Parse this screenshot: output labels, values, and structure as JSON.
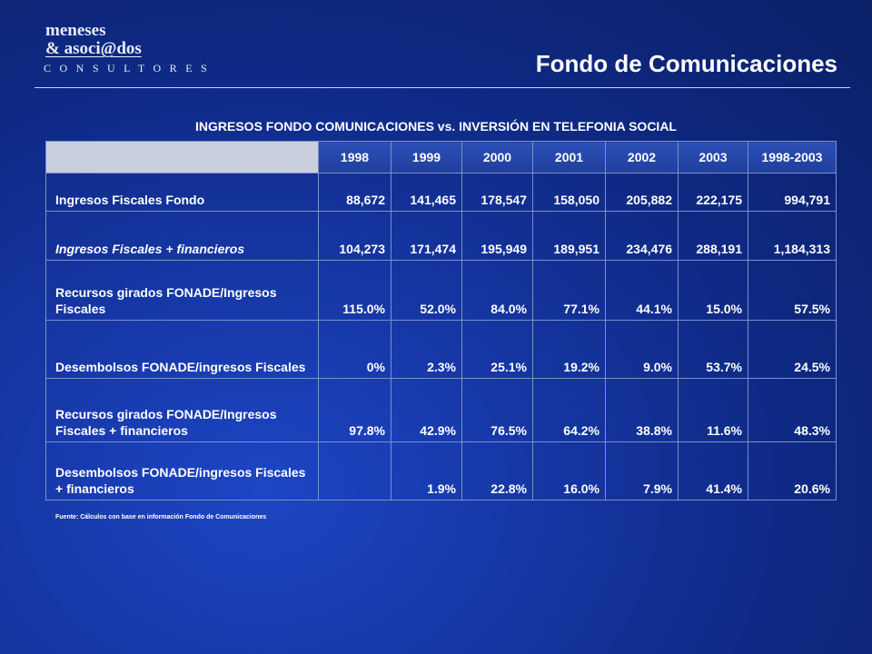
{
  "logo": {
    "line1": "meneses",
    "line2": "& asoci@dos",
    "line3": "CONSULTORES"
  },
  "header": {
    "title": "Fondo de Comunicaciones"
  },
  "subtitle": "INGRESOS FONDO COMUNICACIONES vs.  INVERSIÓN EN TELEFONIA SOCIAL",
  "table": {
    "columns": [
      "1998",
      "1999",
      "2000",
      "2001",
      "2002",
      "2003",
      "1998-2003"
    ],
    "rows": [
      {
        "label": "Ingresos Fiscales Fondo",
        "values": [
          "88,672",
          "141,465",
          "178,547",
          "158,050",
          "205,882",
          "222,175",
          "994,791"
        ]
      },
      {
        "label": "Ingresos Fiscales +  financieros",
        "values": [
          "104,273",
          "171,474",
          "195,949",
          "189,951",
          "234,476",
          "288,191",
          "1,184,313"
        ]
      },
      {
        "label": "Recursos girados FONADE/Ingresos Fiscales",
        "values": [
          "115.0%",
          "52.0%",
          "84.0%",
          "77.1%",
          "44.1%",
          "15.0%",
          "57.5%"
        ]
      },
      {
        "label": "Desembolsos FONADE/ingresos Fiscales",
        "values": [
          "0%",
          "2.3%",
          "25.1%",
          "19.2%",
          "9.0%",
          "53.7%",
          "24.5%"
        ]
      },
      {
        "label": "Recursos girados FONADE/Ingresos Fiscales + financieros",
        "values": [
          "97.8%",
          "42.9%",
          "76.5%",
          "64.2%",
          "38.8%",
          "11.6%",
          "48.3%"
        ]
      },
      {
        "label": "Desembolsos FONADE/ingresos Fiscales + financieros",
        "values": [
          "",
          "1.9%",
          "22.8%",
          "16.0%",
          "7.9%",
          "41.4%",
          "20.6%"
        ]
      }
    ]
  },
  "source": "Fuente: Cálculos con base en información Fondo de Comunicaciones"
}
